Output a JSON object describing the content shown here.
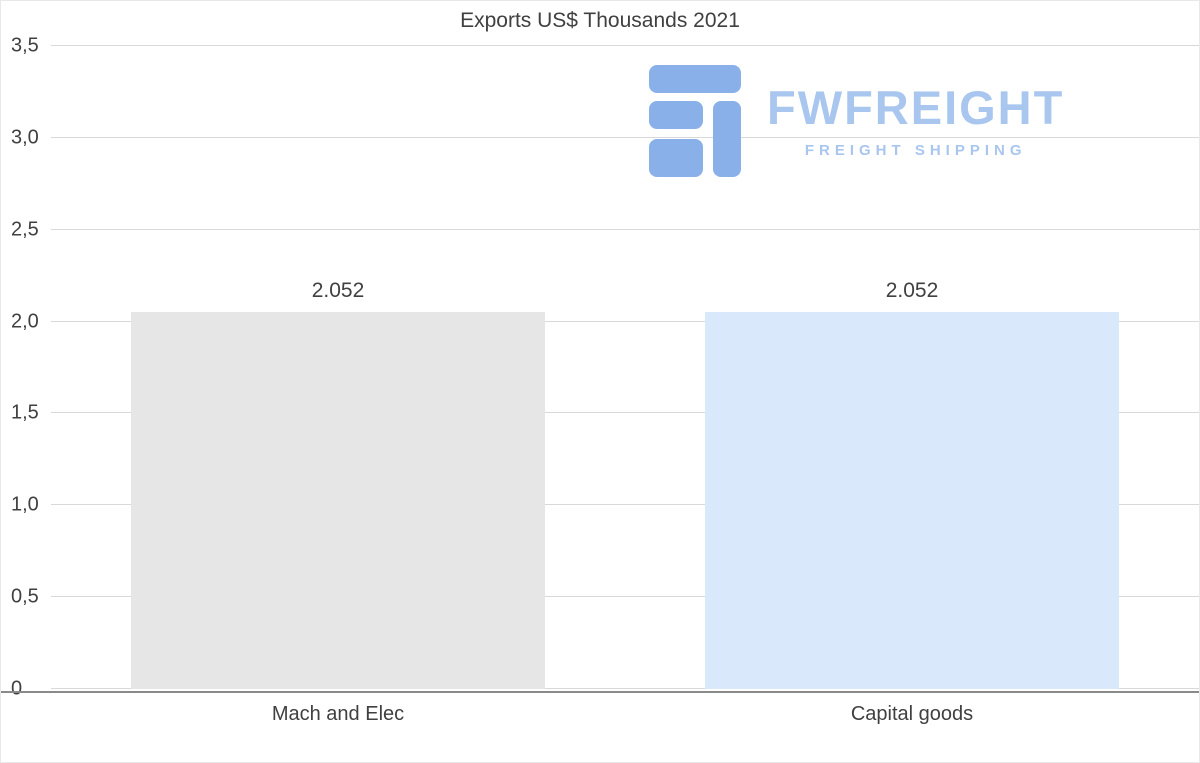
{
  "title": "Exports US$ Thousands 2021",
  "logo": {
    "name": "FWFREIGHT",
    "tagline": "FREIGHT SHIPPING",
    "text_color": "#a9c6ef",
    "icon_color": "#89b0e9"
  },
  "chart_data": {
    "type": "bar",
    "title": "Exports US$ Thousands 2021",
    "categories": [
      "Mach and Elec",
      "Capital goods"
    ],
    "values": [
      2.052,
      2.052
    ],
    "value_labels": [
      "2.052",
      "2.052"
    ],
    "bar_colors": [
      "#e6e6e6",
      "#d9e9fb"
    ],
    "ylim": [
      0,
      3.5
    ],
    "ytick_values": [
      0,
      0.5,
      1.0,
      1.5,
      2.0,
      2.5,
      3.0,
      3.5
    ],
    "ytick_labels": [
      "0",
      "0,5",
      "1,0",
      "1,5",
      "2,0",
      "2,5",
      "3,0",
      "3,5"
    ],
    "xlabel": "",
    "ylabel": "",
    "grid": true,
    "legend": false
  }
}
